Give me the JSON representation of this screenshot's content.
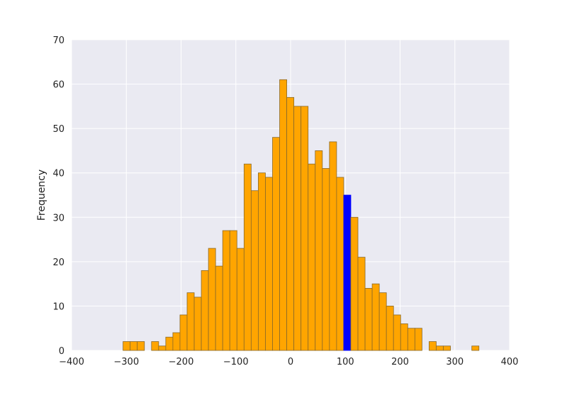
{
  "chart_data": {
    "type": "bar",
    "title": "",
    "xlabel": "",
    "ylabel": "Frequency",
    "xlim": [
      -400,
      400
    ],
    "ylim": [
      0,
      70
    ],
    "xticks": [
      -400,
      -300,
      -200,
      -100,
      0,
      100,
      200,
      300,
      400
    ],
    "yticks": [
      0,
      10,
      20,
      30,
      40,
      50,
      60,
      70
    ],
    "xtick_labels": [
      "−400",
      "−300",
      "−200",
      "−100",
      "0",
      "100",
      "200",
      "300",
      "400"
    ],
    "ytick_labels": [
      "0",
      "10",
      "20",
      "30",
      "40",
      "50",
      "60",
      "70"
    ],
    "grid": true,
    "bin_width": 13,
    "bin_starts": [
      -306,
      -293,
      -280,
      -267,
      -254,
      -241,
      -228,
      -215,
      -202,
      -189,
      -176,
      -163,
      -150,
      -137,
      -124,
      -111,
      -98,
      -85,
      -72,
      -59,
      -46,
      -33,
      -20,
      -7,
      6,
      19,
      32,
      45,
      58,
      71,
      84,
      97,
      110,
      123,
      136,
      149,
      162,
      175,
      188,
      201,
      214,
      227,
      240,
      253,
      266,
      279,
      292,
      305,
      318,
      331
    ],
    "values": [
      2,
      2,
      2,
      0,
      2,
      1,
      3,
      4,
      8,
      13,
      12,
      18,
      23,
      19,
      27,
      27,
      23,
      42,
      36,
      40,
      39,
      48,
      61,
      57,
      55,
      55,
      42,
      45,
      41,
      47,
      39,
      35,
      30,
      21,
      14,
      15,
      13,
      10,
      8,
      6,
      5,
      5,
      0,
      2,
      1,
      1,
      0,
      0,
      0,
      1
    ],
    "highlight_index": 31,
    "colors": {
      "bar": "#FFA500",
      "bar_edge": "#8a6a2a",
      "highlight": "#0000FF",
      "plot_background": "#EAEAF2",
      "grid": "#FFFFFF"
    }
  }
}
